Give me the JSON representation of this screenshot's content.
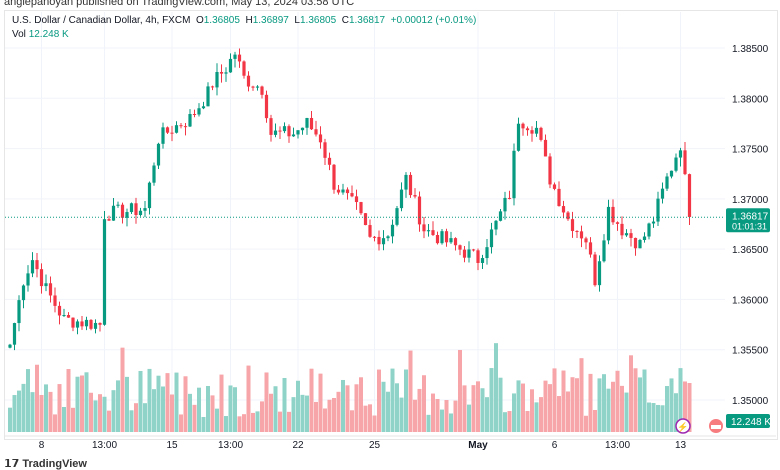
{
  "published": "anglepanoyan published on TradingView.com, May 13, 2024 03:58 UTC",
  "legend": {
    "symbol": "U.S. Dollar / Canadian Dollar, 4h, FXCM",
    "o_label": "O",
    "o": "1.36805",
    "h_label": "H",
    "h": "1.36897",
    "l_label": "L",
    "l": "1.36805",
    "c_label": "C",
    "c": "1.36817",
    "change": "+0.00012 (+0.01%)",
    "vol_label": "Vol",
    "vol": "12.248 K"
  },
  "brand": "TradingView",
  "colors": {
    "up": "#089981",
    "down": "#f23645",
    "vol_up": "#8fd3c8",
    "vol_down": "#f7a5a9"
  },
  "chart_data": {
    "type": "candlestick",
    "title": "U.S. Dollar / Canadian Dollar, 4h, FXCM",
    "ylim": [
      1.3475,
      1.3875
    ],
    "y_ticks": [
      "1.38500",
      "1.38000",
      "1.37500",
      "1.37000",
      "1.36500",
      "1.36000",
      "1.35500",
      "1.35000"
    ],
    "y_tick_values": [
      1.385,
      1.38,
      1.375,
      1.37,
      1.365,
      1.36,
      1.355,
      1.35
    ],
    "x_ticks": [
      {
        "label": "8",
        "i": 7
      },
      {
        "label": "13:00",
        "i": 21
      },
      {
        "label": "15",
        "i": 36
      },
      {
        "label": "13:00",
        "i": 49
      },
      {
        "label": "22",
        "i": 64
      },
      {
        "label": "25",
        "i": 81
      },
      {
        "label": "May",
        "i": 104
      },
      {
        "label": "6",
        "i": 121
      },
      {
        "label": "13:00",
        "i": 135
      },
      {
        "label": "13",
        "i": 149
      }
    ],
    "n_candles": 152,
    "close_waypoints": [
      [
        0,
        1.3555
      ],
      [
        3,
        1.362
      ],
      [
        5,
        1.364
      ],
      [
        8,
        1.361
      ],
      [
        12,
        1.358
      ],
      [
        20,
        1.3575
      ],
      [
        21,
        1.3685
      ],
      [
        30,
        1.369
      ],
      [
        33,
        1.376
      ],
      [
        36,
        1.377
      ],
      [
        40,
        1.378
      ],
      [
        44,
        1.3805
      ],
      [
        45,
        1.3815
      ],
      [
        48,
        1.383
      ],
      [
        50,
        1.3845
      ],
      [
        52,
        1.382
      ],
      [
        56,
        1.381
      ],
      [
        58,
        1.3765
      ],
      [
        63,
        1.3765
      ],
      [
        66,
        1.3775
      ],
      [
        69,
        1.376
      ],
      [
        72,
        1.3715
      ],
      [
        77,
        1.369
      ],
      [
        80,
        1.366
      ],
      [
        84,
        1.3665
      ],
      [
        88,
        1.372
      ],
      [
        92,
        1.367
      ],
      [
        96,
        1.366
      ],
      [
        100,
        1.365
      ],
      [
        104,
        1.364
      ],
      [
        108,
        1.3675
      ],
      [
        111,
        1.3705
      ],
      [
        113,
        1.378
      ],
      [
        117,
        1.377
      ],
      [
        120,
        1.372
      ],
      [
        124,
        1.368
      ],
      [
        128,
        1.366
      ],
      [
        130,
        1.362
      ],
      [
        133,
        1.369
      ],
      [
        136,
        1.367
      ],
      [
        140,
        1.3655
      ],
      [
        143,
        1.368
      ],
      [
        146,
        1.372
      ],
      [
        149,
        1.3755
      ],
      [
        151,
        1.3682
      ]
    ],
    "last_price": "1.36817",
    "countdown": "01:01:31",
    "last_volume": "12.248 K"
  }
}
